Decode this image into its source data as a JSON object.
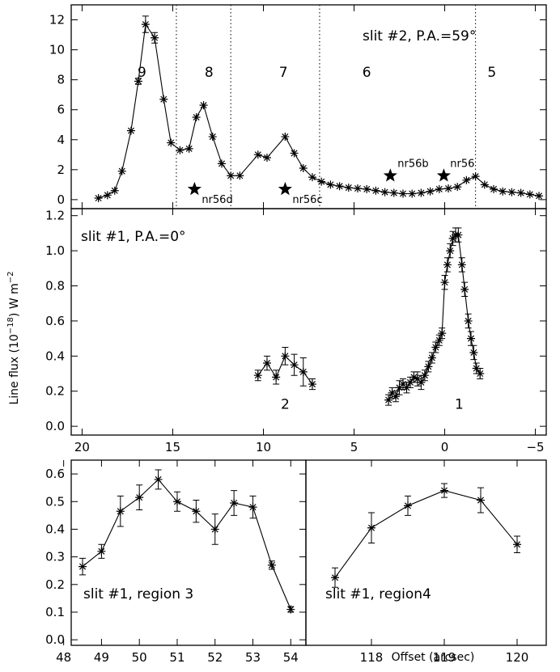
{
  "figure": {
    "ylabel": "Line flux (10",
    "ylabel_exp": "−18",
    "ylabel_tail": ") W m",
    "ylabel_exp2": "−2",
    "xlabel": "Offset (arcsec)"
  },
  "chart_data": [
    {
      "type": "line",
      "panel": "top",
      "title": "slit #2, P.A.=59°",
      "xlim": [
        20.6,
        -5.6
      ],
      "ylim": [
        -0.6,
        13
      ],
      "yticks": [
        "0",
        "2",
        "4",
        "6",
        "8",
        "10",
        "12"
      ],
      "show_xtick_labels": false,
      "vlines": [
        14.8,
        11.8,
        6.9,
        -1.7
      ],
      "region_labels": [
        {
          "x": 16.7,
          "y": 8.2,
          "text": "9"
        },
        {
          "x": 13.0,
          "y": 8.2,
          "text": "8"
        },
        {
          "x": 8.9,
          "y": 8.2,
          "text": "7"
        },
        {
          "x": 4.3,
          "y": 8.2,
          "text": "6"
        },
        {
          "x": -2.6,
          "y": 8.2,
          "text": "5"
        }
      ],
      "stars": [
        {
          "x": 13.8,
          "y": 0.7,
          "label": "nr56d",
          "lx": 13.4,
          "ly": 0.0
        },
        {
          "x": 8.8,
          "y": 0.7,
          "label": "nr56c",
          "lx": 8.4,
          "ly": 0.0
        },
        {
          "x": 3.0,
          "y": 1.6,
          "label": "nr56b",
          "lx": 2.6,
          "ly": 2.4
        },
        {
          "x": 0.05,
          "y": 1.6,
          "label": "nr56",
          "lx": -0.3,
          "ly": 2.4
        }
      ],
      "series": [
        {
          "points": [
            [
              19.1,
              0.1
            ],
            [
              18.6,
              0.3
            ],
            [
              18.2,
              0.6
            ],
            [
              17.8,
              1.9
            ],
            [
              17.3,
              4.6
            ],
            [
              16.9,
              7.9
            ],
            [
              16.5,
              11.7
            ],
            [
              16.0,
              10.8
            ],
            [
              15.5,
              6.7
            ],
            [
              15.1,
              3.8
            ],
            [
              14.6,
              3.3
            ],
            [
              14.1,
              3.4
            ],
            [
              13.7,
              5.5
            ],
            [
              13.3,
              6.3
            ],
            [
              12.8,
              4.2
            ],
            [
              12.3,
              2.4
            ],
            [
              11.8,
              1.6
            ],
            [
              11.3,
              1.6
            ],
            [
              10.3,
              3.0
            ],
            [
              9.8,
              2.8
            ],
            [
              8.8,
              4.2
            ],
            [
              8.3,
              3.1
            ],
            [
              7.8,
              2.1
            ],
            [
              7.3,
              1.5
            ],
            [
              6.8,
              1.2
            ],
            [
              6.3,
              1.0
            ],
            [
              5.8,
              0.9
            ],
            [
              5.3,
              0.8
            ],
            [
              4.8,
              0.75
            ],
            [
              4.3,
              0.7
            ],
            [
              3.8,
              0.6
            ],
            [
              3.3,
              0.5
            ],
            [
              2.8,
              0.45
            ],
            [
              2.3,
              0.4
            ],
            [
              1.8,
              0.4
            ],
            [
              1.3,
              0.45
            ],
            [
              0.8,
              0.55
            ],
            [
              0.3,
              0.7
            ],
            [
              -0.2,
              0.75
            ],
            [
              -0.7,
              0.85
            ],
            [
              -1.2,
              1.3
            ],
            [
              -1.7,
              1.55
            ],
            [
              -2.2,
              1.0
            ],
            [
              -2.7,
              0.7
            ],
            [
              -3.2,
              0.55
            ],
            [
              -3.7,
              0.5
            ],
            [
              -4.2,
              0.45
            ],
            [
              -4.7,
              0.35
            ],
            [
              -5.2,
              0.25
            ]
          ],
          "errors": [
            [
              16.5,
              0.55
            ],
            [
              16.0,
              0.35
            ],
            [
              16.9,
              0.2
            ]
          ]
        }
      ]
    },
    {
      "type": "line",
      "panel": "middle",
      "title": "slit #1, P.A.=0°",
      "xlim": [
        20.6,
        -5.6
      ],
      "ylim": [
        -0.05,
        1.24
      ],
      "yticks": [
        "0.0",
        "0.2",
        "0.4",
        "0.6",
        "0.8",
        "1.0",
        "1.2"
      ],
      "xticks": [
        "20",
        "15",
        "10",
        "5",
        "0",
        "−5"
      ],
      "region_labels": [
        {
          "x": 8.8,
          "y": 0.1,
          "text": "2"
        },
        {
          "x": -0.8,
          "y": 0.1,
          "text": "1"
        }
      ],
      "series": [
        {
          "points": [
            [
              10.3,
              0.29,
              0.03
            ],
            [
              9.8,
              0.36,
              0.04
            ],
            [
              9.3,
              0.28,
              0.04
            ],
            [
              8.8,
              0.4,
              0.05
            ],
            [
              8.3,
              0.35,
              0.06
            ],
            [
              7.8,
              0.31,
              0.08
            ],
            [
              7.3,
              0.24,
              0.03
            ]
          ]
        },
        {
          "points": [
            [
              3.1,
              0.15,
              0.03
            ],
            [
              2.9,
              0.19,
              0.03
            ],
            [
              2.7,
              0.17,
              0.03
            ],
            [
              2.5,
              0.22,
              0.04
            ],
            [
              2.3,
              0.24,
              0.03
            ],
            [
              2.1,
              0.22,
              0.03
            ],
            [
              1.9,
              0.25,
              0.03
            ],
            [
              1.7,
              0.28,
              0.03
            ],
            [
              1.5,
              0.27,
              0.04
            ],
            [
              1.3,
              0.25,
              0.04
            ],
            [
              1.1,
              0.29,
              0.03
            ],
            [
              0.9,
              0.34,
              0.03
            ],
            [
              0.7,
              0.39,
              0.03
            ],
            [
              0.5,
              0.45,
              0.03
            ],
            [
              0.3,
              0.49,
              0.03
            ],
            [
              0.15,
              0.53,
              0.03
            ],
            [
              0.0,
              0.82,
              0.04
            ],
            [
              -0.15,
              0.92,
              0.04
            ],
            [
              -0.3,
              1.0,
              0.04
            ],
            [
              -0.45,
              1.07,
              0.04
            ],
            [
              -0.6,
              1.09,
              0.04
            ],
            [
              -0.75,
              1.09,
              0.04
            ],
            [
              -0.95,
              0.92,
              0.04
            ],
            [
              -1.1,
              0.78,
              0.04
            ],
            [
              -1.3,
              0.6,
              0.04
            ],
            [
              -1.45,
              0.5,
              0.04
            ],
            [
              -1.6,
              0.42,
              0.04
            ],
            [
              -1.75,
              0.33,
              0.03
            ],
            [
              -1.95,
              0.3,
              0.03
            ]
          ]
        }
      ]
    },
    {
      "type": "line",
      "panel": "bottom-left",
      "title": "slit #1, region 3",
      "xlim": [
        48.2,
        54.4
      ],
      "ylim": [
        -0.02,
        0.65
      ],
      "yticks": [
        "0.0",
        "0.1",
        "0.2",
        "0.3",
        "0.4",
        "0.5",
        "0.6"
      ],
      "xticks": [
        "48",
        "49",
        "50",
        "51",
        "52",
        "53",
        "54"
      ],
      "series": [
        {
          "points": [
            [
              48.5,
              0.265,
              0.03
            ],
            [
              49.0,
              0.32,
              0.025
            ],
            [
              49.5,
              0.465,
              0.055
            ],
            [
              50.0,
              0.515,
              0.045
            ],
            [
              50.5,
              0.58,
              0.035
            ],
            [
              51.0,
              0.5,
              0.035
            ],
            [
              51.5,
              0.465,
              0.04
            ],
            [
              52.0,
              0.4,
              0.055
            ],
            [
              52.5,
              0.495,
              0.045
            ],
            [
              53.0,
              0.48,
              0.04
            ],
            [
              53.5,
              0.27,
              0.015
            ],
            [
              54.0,
              0.11,
              0.01
            ]
          ]
        }
      ]
    },
    {
      "type": "line",
      "panel": "bottom-right",
      "title": "slit #1, region4",
      "xlim": [
        117.1,
        120.4
      ],
      "ylim": [
        -0.02,
        0.65
      ],
      "xticks": [
        "118",
        "119",
        "120"
      ],
      "series": [
        {
          "points": [
            [
              117.5,
              0.225,
              0.035
            ],
            [
              118.0,
              0.405,
              0.055
            ],
            [
              118.5,
              0.485,
              0.035
            ],
            [
              119.0,
              0.54,
              0.025
            ],
            [
              119.5,
              0.505,
              0.045
            ],
            [
              120.0,
              0.345,
              0.03
            ]
          ]
        }
      ]
    }
  ]
}
